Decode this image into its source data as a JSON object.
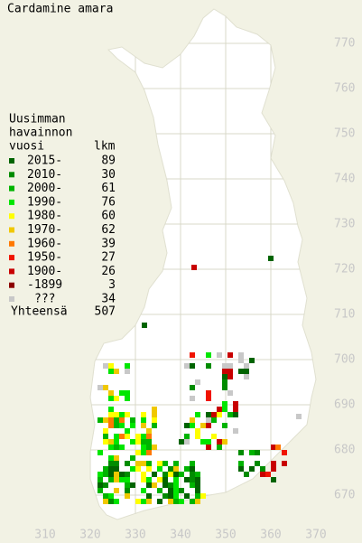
{
  "title": "Cardamine amara",
  "legend": {
    "heading": [
      "Uusimman",
      "havainnon",
      "vuosi"
    ],
    "count_heading": "lkm",
    "rows": [
      {
        "label": "2015-",
        "count": 89,
        "color": "#006400"
      },
      {
        "label": "2010-",
        "count": 30,
        "color": "#008c00"
      },
      {
        "label": "2000-",
        "count": 61,
        "color": "#00b400"
      },
      {
        "label": "1990-",
        "count": 76,
        "color": "#00e600"
      },
      {
        "label": "1980-",
        "count": 60,
        "color": "#ffff00"
      },
      {
        "label": "1970-",
        "count": 62,
        "color": "#f0c800"
      },
      {
        "label": "1960-",
        "count": 39,
        "color": "#ff7800"
      },
      {
        "label": "1950-",
        "count": 27,
        "color": "#f01400"
      },
      {
        "label": "1900-",
        "count": 26,
        "color": "#c80000"
      },
      {
        "label": "-1899",
        "count": 3,
        "color": "#8c0000"
      },
      {
        "label": "???",
        "count": 34,
        "color": "#c8c8c8"
      }
    ],
    "total_label": "Yhteensä",
    "total": 507
  },
  "axes": {
    "y_labels": [
      770,
      760,
      750,
      740,
      730,
      720,
      710,
      700,
      690,
      680,
      670
    ],
    "x_labels": [
      310,
      320,
      330,
      340,
      350,
      360,
      370
    ]
  }
}
